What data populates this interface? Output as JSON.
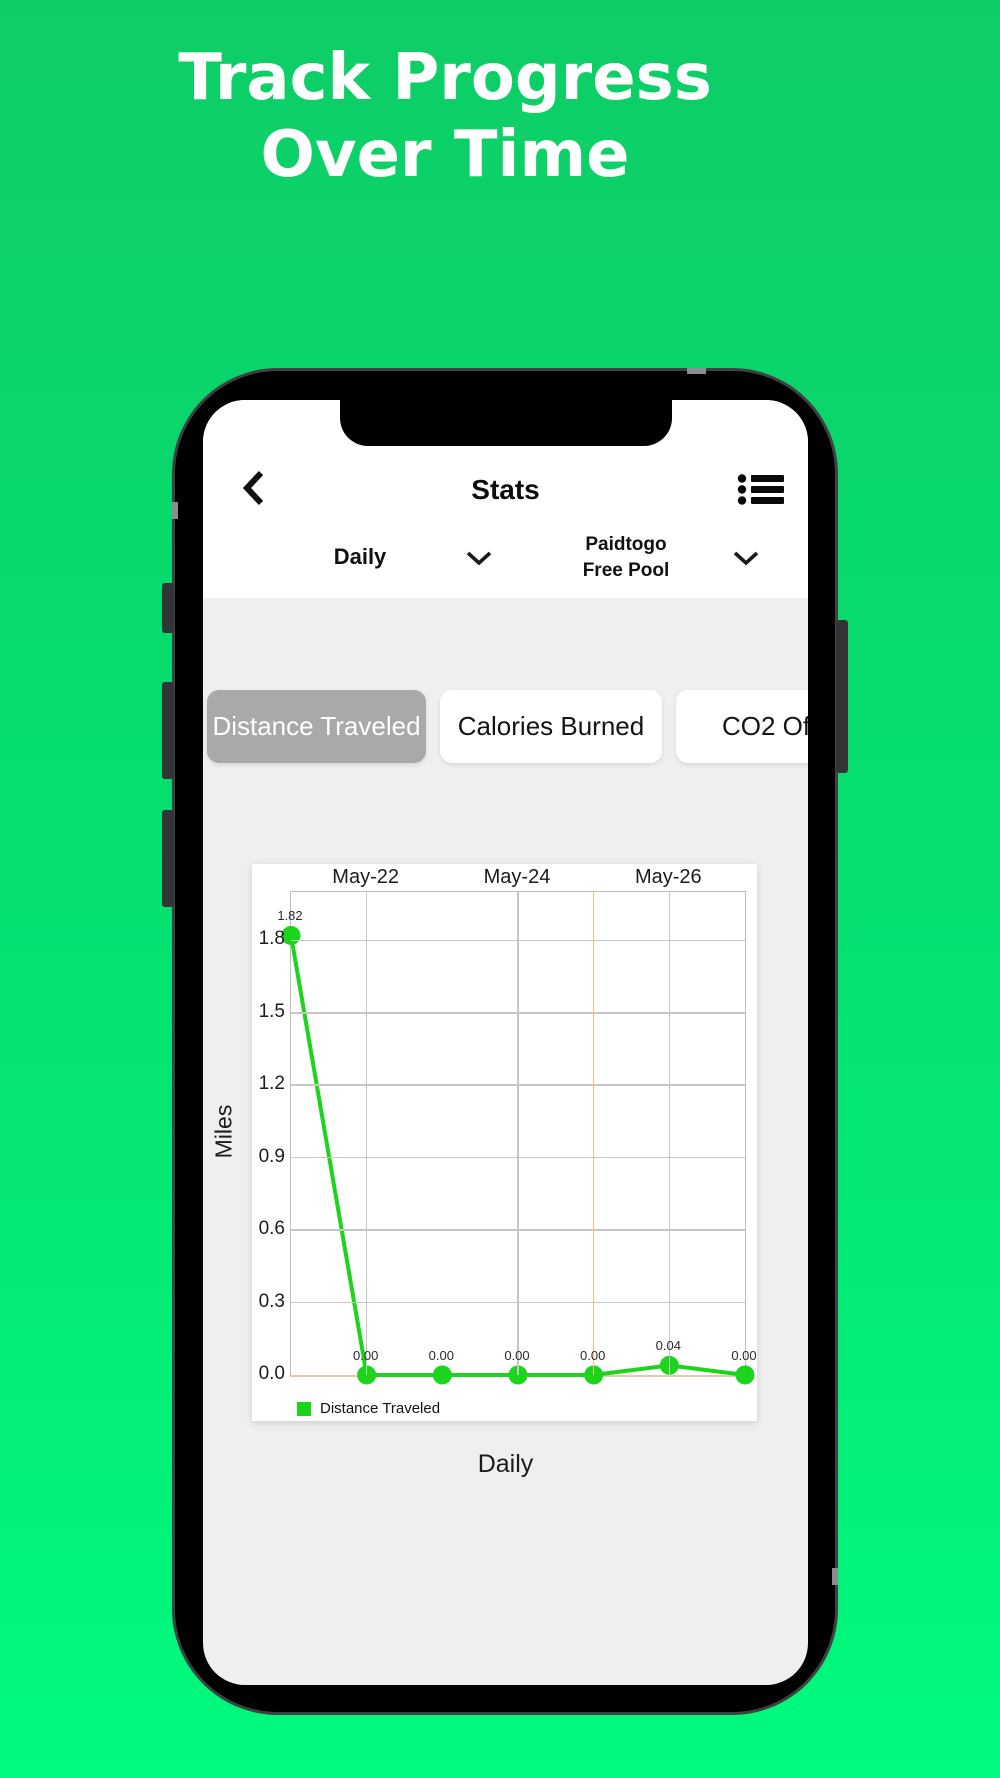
{
  "hero": {
    "title_line1": "Track Progress",
    "title_line2": "Over Time"
  },
  "app": {
    "header": {
      "title": "Stats"
    },
    "filters": {
      "period_value": "Daily",
      "pool_value_line1": "Paidtogo",
      "pool_value_line2": "Free Pool"
    },
    "tabs": [
      {
        "label": "Distance Traveled",
        "selected": true
      },
      {
        "label": "Calories Burned",
        "selected": false
      },
      {
        "label": "CO2 Of",
        "selected": false
      }
    ]
  },
  "chart_data": {
    "type": "line",
    "ylabel": "Miles",
    "xlabel": "Daily",
    "ylim": [
      0,
      2.0
    ],
    "grid": true,
    "x_axis_labels_at_top": true,
    "legend_position": "bottom-left",
    "y_ticks": [
      "1.8",
      "1.5",
      "1.2",
      "0.9",
      "0.6",
      "0.3",
      "0.0"
    ],
    "x_ticks": [
      {
        "position": 1,
        "label": "May-22"
      },
      {
        "position": 3,
        "label": "May-24"
      },
      {
        "position": 5,
        "label": "May-26"
      }
    ],
    "x_gridline_positions": [
      1,
      3,
      4,
      5,
      6
    ],
    "today_line_position": 4,
    "series": [
      {
        "name": "Distance Traveled",
        "color": "#1cd41c",
        "values": [
          1.82,
          0,
          0,
          0,
          0,
          0.04,
          0
        ],
        "point_labels": [
          "1.82",
          "0.00",
          "0.00",
          "0.00",
          "0.00",
          "0.04",
          "0.00"
        ]
      }
    ],
    "colors": {
      "grid": "#c6c6c6",
      "plot_border": "#bdbdbd",
      "axis_bottom": "#e3cbaa",
      "today_line": "#f9bd7e"
    }
  },
  "theme": {
    "background_top": "#0ecd66",
    "background_bottom": "#00fa7d",
    "selected_tab_bg": "#a9a9a9",
    "accent_green": "#1cd41c"
  }
}
